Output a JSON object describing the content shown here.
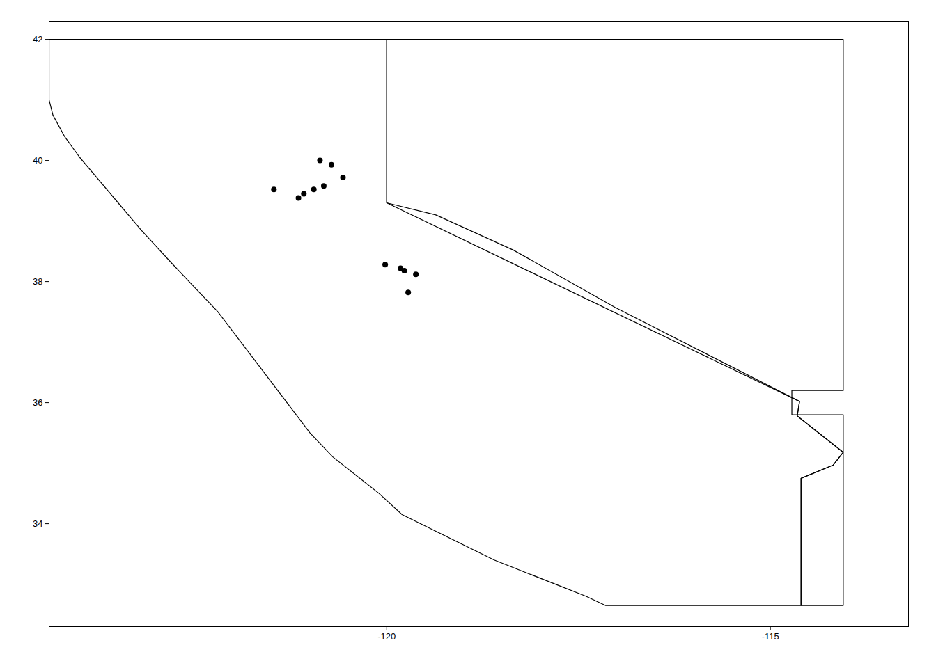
{
  "chart_data": {
    "type": "line",
    "xlim": [
      -124.4,
      -113.2
    ],
    "ylim": [
      32.3,
      42.3
    ],
    "xticks": [
      -120,
      -115
    ],
    "yticks": [
      34,
      36,
      38,
      40,
      42
    ],
    "grid": false,
    "series": [
      {
        "type": "line",
        "color": "#000000",
        "x": [
          -124.4,
          -124.35,
          -124.2,
          -124.0,
          -123.8,
          -123.5,
          -123.2,
          -122.8,
          -122.5,
          -122.2,
          -121.9,
          -121.6,
          -121.3,
          -121.0,
          -120.7,
          -120.4,
          -120.1,
          -119.8,
          -119.4,
          -119.0,
          -118.6,
          -118.2,
          -117.8,
          -117.4,
          -117.15,
          -114.6,
          -114.6,
          -114.18,
          -114.05,
          -114.65,
          -114.62,
          -120.0,
          -120.0,
          -124.4,
          -124.4
        ],
        "y": [
          41.0,
          40.75,
          40.4,
          40.05,
          39.75,
          39.3,
          38.85,
          38.3,
          37.9,
          37.5,
          37.0,
          36.5,
          36.0,
          35.5,
          35.1,
          34.8,
          34.5,
          34.15,
          33.9,
          33.65,
          33.4,
          33.2,
          33.0,
          32.8,
          32.65,
          32.65,
          34.75,
          34.97,
          35.18,
          35.78,
          36.02,
          39.3,
          42.0,
          42.0,
          41.0
        ]
      },
      {
        "type": "line",
        "color": "#000000",
        "x": [
          -120.0,
          -120.0,
          -119.36,
          -118.35,
          -117.02,
          -114.62,
          -114.65,
          -114.05,
          -114.18,
          -114.6,
          -114.6,
          -114.05,
          -114.05,
          -114.72,
          -114.72,
          -114.05,
          -114.05,
          -120.0
        ],
        "y": [
          42.0,
          39.3,
          39.1,
          38.52,
          37.57,
          36.02,
          35.78,
          35.18,
          34.97,
          34.75,
          32.65,
          32.65,
          35.8,
          35.8,
          36.2,
          36.2,
          42.0,
          42.0
        ]
      },
      {
        "type": "scatter",
        "color": "#000000",
        "x": [
          -121.47,
          -120.87,
          -120.72,
          -120.57,
          -120.82,
          -120.95,
          -121.08,
          -121.15,
          -119.77,
          -119.62,
          -119.72,
          -119.82,
          -120.02
        ],
        "y": [
          39.52,
          40.0,
          39.93,
          39.72,
          39.58,
          39.52,
          39.45,
          39.38,
          38.18,
          38.12,
          37.82,
          38.22,
          38.28
        ]
      }
    ]
  }
}
